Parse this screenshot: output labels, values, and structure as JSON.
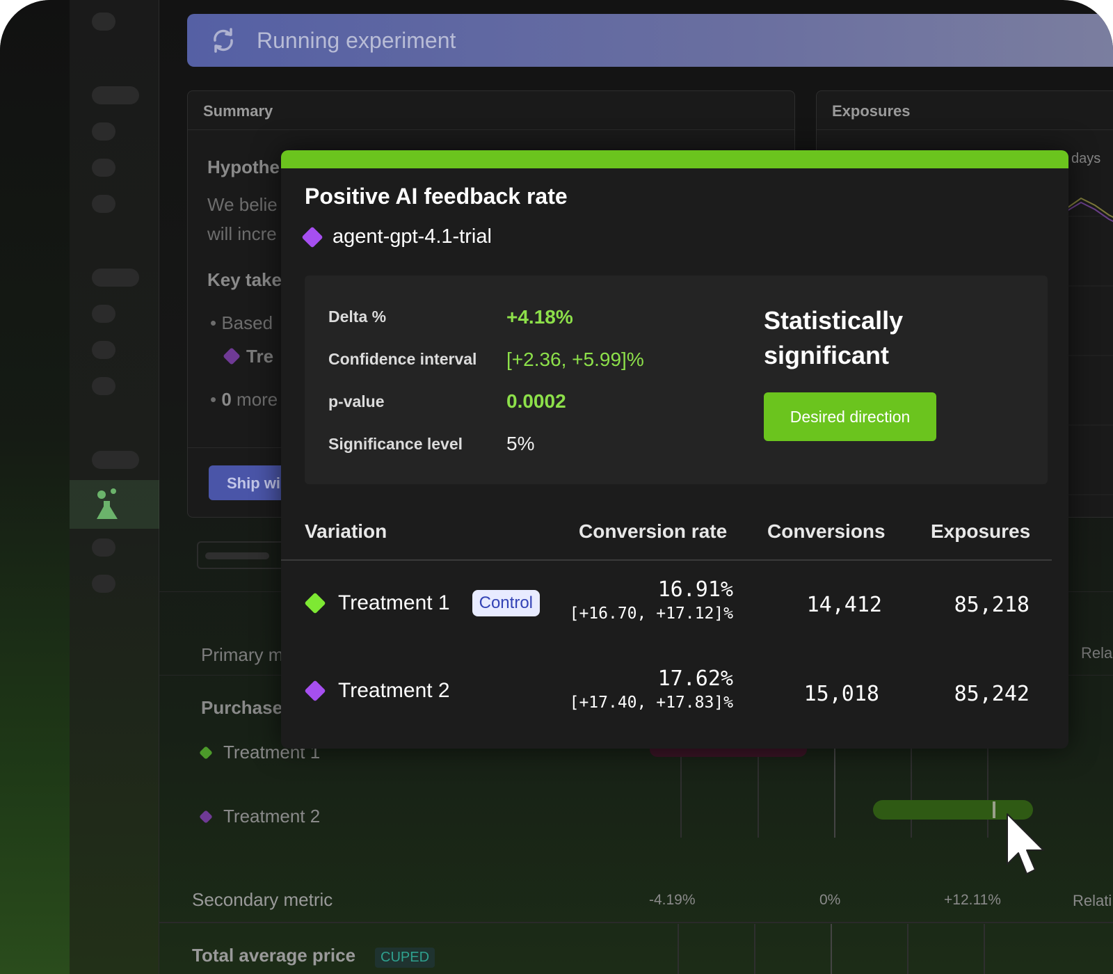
{
  "banner": {
    "title": "Running experiment",
    "icon": "sync-icon"
  },
  "summary": {
    "header": "Summary",
    "hypothesis_title": "Hypothe",
    "hypothesis_text_1": "We belie",
    "hypothesis_text_2": "will incre",
    "key_takeaways_title": "Key take",
    "takeaway_1": "Based",
    "takeaway_variant": "Tre",
    "takeaway_2_count": "0",
    "takeaway_2_text": "more",
    "ship_button": "Ship wi"
  },
  "exposures": {
    "header": "Exposures",
    "range_label": "days"
  },
  "metrics": {
    "primary_label": "Primary m",
    "primary_right_label": "Rela",
    "primary_metric_name": "Purchase",
    "rows": [
      {
        "name": "Treatment 1",
        "color": "#4c9a2a"
      },
      {
        "name": "Treatment 2",
        "color": "#8a44b8"
      }
    ],
    "secondary_label": "Secondary metric",
    "secondary_ticks": [
      "-4.19%",
      "0%",
      "+12.11%"
    ],
    "secondary_right_label": "Relati",
    "secondary_metric_name": "Total average price",
    "cuped_badge": "CUPED"
  },
  "modal": {
    "accent_color": "#6bc41e",
    "title": "Positive AI feedback rate",
    "variant_name": "agent-gpt-4.1-trial",
    "variant_color": "#a64ff0",
    "stats": {
      "delta_label": "Delta %",
      "delta_value": "+4.18%",
      "ci_label": "Confidence interval",
      "ci_value": "[+2.36, +5.99]%",
      "pvalue_label": "p-value",
      "pvalue_value": "0.0002",
      "sig_level_label": "Significance level",
      "sig_level_value": "5%"
    },
    "significance_text_1": "Statistically",
    "significance_text_2": "significant",
    "direction_button": "Desired direction",
    "table": {
      "headers": [
        "Variation",
        "Conversion rate",
        "Conversions",
        "Exposures"
      ],
      "rows": [
        {
          "name": "Treatment 1",
          "color": "#7ee833",
          "badge": "Control",
          "rate": "16.91%",
          "rate_ci": "[+16.70, +17.12]%",
          "conversions": "14,412",
          "exposures": "85,218"
        },
        {
          "name": "Treatment 2",
          "color": "#a64ff0",
          "rate": "17.62%",
          "rate_ci": "[+17.40, +17.83]%",
          "conversions": "15,018",
          "exposures": "85,242"
        }
      ]
    }
  }
}
